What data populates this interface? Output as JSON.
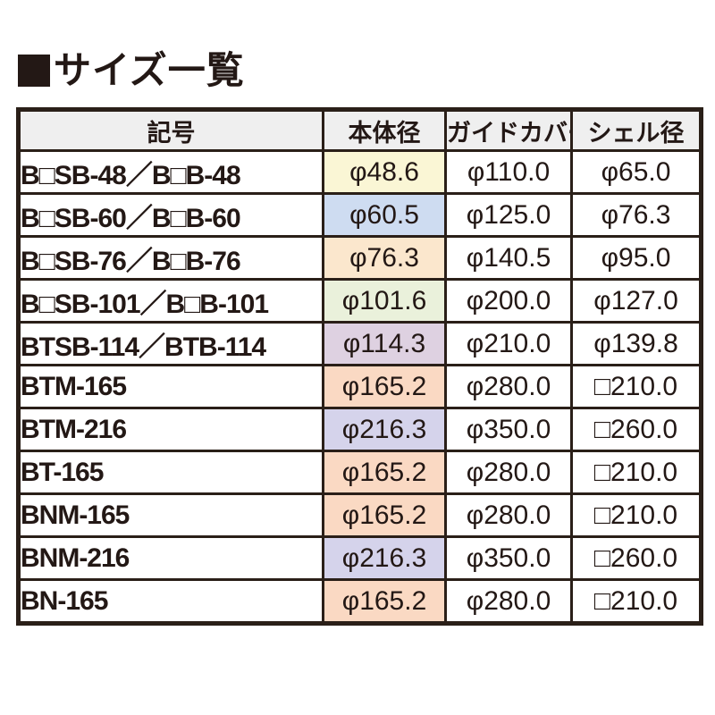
{
  "page": {
    "title": "サイズ一覧"
  },
  "colors": {
    "border": "#2a1f18",
    "header_bg": "#efefef",
    "title_marker": "#231815",
    "cell_white": "#ffffff",
    "highlight_cream": "#faf6d5",
    "highlight_blue": "#cedcf1",
    "highlight_peach": "#fbe7cd",
    "highlight_green": "#eaf1db",
    "highlight_lilac": "#ded1e1",
    "highlight_salmon": "#fad9c3",
    "highlight_lavender": "#d5d3eb"
  },
  "table": {
    "headers": [
      "記号",
      "本体径",
      "ガイドカバー",
      "シェル径"
    ],
    "header_keys": [
      "code",
      "body-diameter",
      "guide-cover",
      "shell-diameter"
    ],
    "rows": [
      {
        "code": "B□SB-48／B□B-48",
        "body": "φ48.6",
        "body_bg": "#faf6d5",
        "guide": "φ110.0",
        "shell": "φ65.0"
      },
      {
        "code": "B□SB-60／B□B-60",
        "body": "φ60.5",
        "body_bg": "#cedcf1",
        "guide": "φ125.0",
        "shell": "φ76.3"
      },
      {
        "code": "B□SB-76／B□B-76",
        "body": "φ76.3",
        "body_bg": "#fbe7cd",
        "guide": "φ140.5",
        "shell": "φ95.0"
      },
      {
        "code": "B□SB-101／B□B-101",
        "body": "φ101.6",
        "body_bg": "#eaf1db",
        "guide": "φ200.0",
        "shell": "φ127.0"
      },
      {
        "code": "BTSB-114／BTB-114",
        "body": "φ114.3",
        "body_bg": "#ded1e1",
        "guide": "φ210.0",
        "shell": "φ139.8"
      },
      {
        "code": "BTM-165",
        "body": "φ165.2",
        "body_bg": "#fad9c3",
        "guide": "φ280.0",
        "shell": "□210.0"
      },
      {
        "code": "BTM-216",
        "body": "φ216.3",
        "body_bg": "#d5d3eb",
        "guide": "φ350.0",
        "shell": "□260.0"
      },
      {
        "code": "BT-165",
        "body": "φ165.2",
        "body_bg": "#fad9c3",
        "guide": "φ280.0",
        "shell": "□210.0"
      },
      {
        "code": "BNM-165",
        "body": "φ165.2",
        "body_bg": "#fad9c3",
        "guide": "φ280.0",
        "shell": "□210.0"
      },
      {
        "code": "BNM-216",
        "body": "φ216.3",
        "body_bg": "#d5d3eb",
        "guide": "φ350.0",
        "shell": "□260.0"
      },
      {
        "code": "BN-165",
        "body": "φ165.2",
        "body_bg": "#fad9c3",
        "guide": "φ280.0",
        "shell": "□210.0"
      }
    ]
  }
}
